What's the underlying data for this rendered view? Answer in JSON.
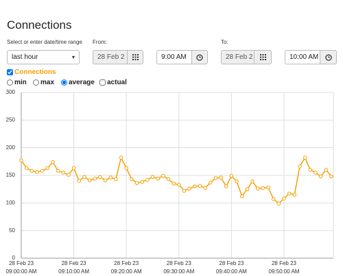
{
  "header": {
    "title": "Connections"
  },
  "range": {
    "label": "Select or enter date/time range",
    "preset": "last hour",
    "from": {
      "label": "From:",
      "date": "28 Feb 2",
      "time": "9:00 AM"
    },
    "to": {
      "label": "To:",
      "date": "28 Feb 2",
      "time": "10:00 AM"
    }
  },
  "options": {
    "series_toggle": "Connections",
    "modes": [
      "min",
      "max",
      "average"
    ],
    "actual": "actual"
  },
  "chart_data": {
    "type": "line",
    "x": [
      0,
      1,
      2,
      3,
      4,
      5,
      6,
      7,
      8,
      9,
      10,
      11,
      12,
      13,
      14,
      15,
      16,
      17,
      18,
      19,
      20,
      21,
      22,
      23,
      24,
      25,
      26,
      27,
      28,
      29,
      30,
      31,
      32,
      33,
      34,
      35,
      36,
      37,
      38,
      39,
      40,
      41,
      42,
      43,
      44,
      45,
      46,
      47,
      48,
      49,
      50,
      51,
      52,
      53,
      54,
      55,
      56,
      57,
      58,
      59
    ],
    "series": [
      {
        "name": "Connections",
        "color": "#f5a000",
        "values": [
          177,
          163,
          158,
          156,
          158,
          163,
          174,
          158,
          155,
          151,
          163,
          140,
          147,
          141,
          144,
          147,
          141,
          146,
          143,
          182,
          163,
          143,
          136,
          138,
          142,
          147,
          144,
          149,
          143,
          135,
          133,
          122,
          126,
          130,
          131,
          127,
          137,
          145,
          146,
          130,
          149,
          139,
          112,
          125,
          139,
          126,
          127,
          128,
          107,
          99,
          108,
          117,
          115,
          166,
          182,
          160,
          155,
          148,
          160,
          148
        ]
      }
    ],
    "xlim": [
      0,
      59.4
    ],
    "xticks": [
      {
        "value": 0,
        "label": [
          "28 Feb 23",
          "09:00:00 AM"
        ]
      },
      {
        "value": 10,
        "label": [
          "28 Feb 23",
          "09:10:00 AM"
        ]
      },
      {
        "value": 20,
        "label": [
          "28 Feb 23",
          "09:20:00 AM"
        ]
      },
      {
        "value": 30,
        "label": [
          "28 Feb 23",
          "09:30:00 AM"
        ]
      },
      {
        "value": 40,
        "label": [
          "28 Feb 23",
          "09:40:00 AM"
        ]
      },
      {
        "value": 50,
        "label": [
          "28 Feb 23",
          "09:50:00 AM"
        ]
      }
    ],
    "ylim": [
      0,
      300
    ],
    "yticks": [
      0,
      50,
      100,
      150,
      200,
      250,
      300
    ],
    "grid": true
  }
}
